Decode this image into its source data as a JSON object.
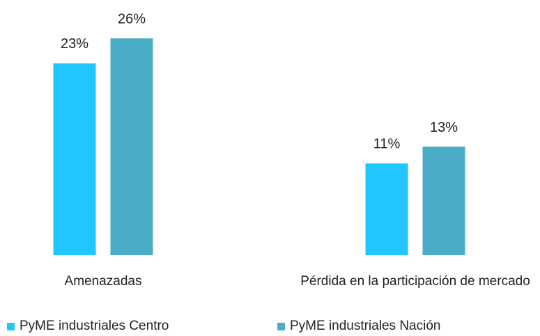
{
  "chart_data": {
    "type": "bar",
    "categories": [
      "Amenazadas",
      "Pérdida en la participación de mercado"
    ],
    "series": [
      {
        "name": "PyME industriales Centro",
        "color": "#21c5ff",
        "values": [
          23,
          11
        ],
        "value_labels": [
          "23%",
          "11%"
        ]
      },
      {
        "name": "PyME industriales Nación",
        "color": "#4bacc6",
        "values": [
          26,
          13
        ],
        "value_labels": [
          "26%",
          "13%"
        ]
      }
    ],
    "grid": false
  }
}
